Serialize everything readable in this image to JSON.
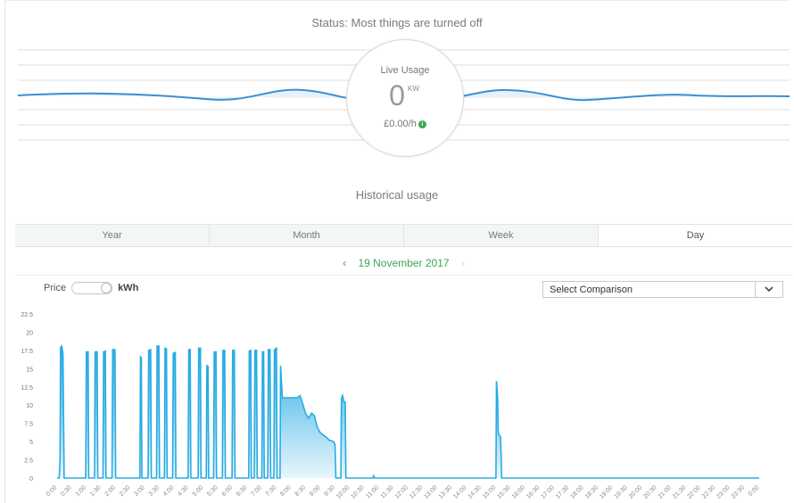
{
  "status": {
    "text": "Status: Most things are turned off"
  },
  "live": {
    "label": "Live Usage",
    "value": "0",
    "unit": "KW",
    "price": "£0.00/h",
    "info_icon": "info-icon"
  },
  "historical": {
    "title": "Historical usage"
  },
  "tabs": [
    {
      "label": "Year",
      "active": false
    },
    {
      "label": "Month",
      "active": false
    },
    {
      "label": "Week",
      "active": false
    },
    {
      "label": "Day",
      "active": true
    }
  ],
  "date_nav": {
    "date": "19 November 2017",
    "prev_icon": "chevron-left-icon",
    "next_icon": "chevron-right-icon"
  },
  "toggle": {
    "left_label": "Price",
    "right_label": "kWh",
    "selected": "kWh"
  },
  "comparison": {
    "selected": "Select Comparison",
    "icon": "chevron-down-icon"
  },
  "colors": {
    "accent": "#3aa757",
    "series": "#29abe2",
    "wave": "#3a8fd4"
  },
  "chart_data": {
    "type": "area",
    "y_ticks": [
      "0",
      "2.5",
      "5",
      "7.5",
      "10",
      "12.5",
      "15",
      "17.5",
      "20",
      "22.5"
    ],
    "ylim": [
      0,
      22.5
    ],
    "x_ticks": [
      "0:00",
      "0:30",
      "1:00",
      "1:30",
      "2:00",
      "2:30",
      "3:00",
      "3:30",
      "4:00",
      "4:30",
      "5:00",
      "5:30",
      "6:00",
      "6:30",
      "7:00",
      "7:30",
      "8:00",
      "8:30",
      "9:00",
      "9:30",
      "10:00",
      "10:30",
      "11:00",
      "11:30",
      "12:00",
      "12:30",
      "13:00",
      "13:30",
      "14:00",
      "14:30",
      "15:00",
      "15:30",
      "16:00",
      "16:30",
      "17:00",
      "17:30",
      "18:00",
      "18:30",
      "19:00",
      "19:30",
      "20:00",
      "20:30",
      "21:00",
      "21:30",
      "22:00",
      "22:30",
      "23:00",
      "23:30",
      "0:00"
    ],
    "xlim": [
      0,
      24
    ],
    "series": [
      {
        "points": [
          [
            0,
            0
          ],
          [
            0.07,
            0
          ],
          [
            0.1,
            2.5
          ],
          [
            0.12,
            17.9
          ],
          [
            0.16,
            18.1
          ],
          [
            0.2,
            17
          ],
          [
            0.24,
            0
          ],
          [
            0.98,
            0
          ],
          [
            1.0,
            17.3
          ],
          [
            1.06,
            17.3
          ],
          [
            1.08,
            0
          ],
          [
            1.28,
            0
          ],
          [
            1.3,
            17.3
          ],
          [
            1.37,
            17.3
          ],
          [
            1.39,
            0
          ],
          [
            1.57,
            0
          ],
          [
            1.59,
            17.3
          ],
          [
            1.65,
            17.4
          ],
          [
            1.67,
            0
          ],
          [
            1.88,
            0
          ],
          [
            1.9,
            17.6
          ],
          [
            1.98,
            17.6
          ],
          [
            2.0,
            0
          ],
          [
            2.83,
            0
          ],
          [
            2.85,
            16.6
          ],
          [
            2.88,
            16.5
          ],
          [
            2.9,
            0
          ],
          [
            3.11,
            0
          ],
          [
            3.13,
            17.5
          ],
          [
            3.2,
            17.6
          ],
          [
            3.22,
            0
          ],
          [
            3.4,
            0
          ],
          [
            3.42,
            18.1
          ],
          [
            3.48,
            18.1
          ],
          [
            3.5,
            0
          ],
          [
            3.67,
            0
          ],
          [
            3.69,
            17.8
          ],
          [
            3.74,
            17.7
          ],
          [
            3.76,
            0
          ],
          [
            3.95,
            0
          ],
          [
            3.97,
            17.1
          ],
          [
            4.04,
            17.2
          ],
          [
            4.06,
            0
          ],
          [
            4.48,
            0
          ],
          [
            4.5,
            17.6
          ],
          [
            4.55,
            17.6
          ],
          [
            4.57,
            0
          ],
          [
            4.82,
            0
          ],
          [
            4.84,
            17.8
          ],
          [
            4.9,
            17.8
          ],
          [
            4.92,
            0
          ],
          [
            5.1,
            0
          ],
          [
            5.12,
            15.4
          ],
          [
            5.16,
            15.3
          ],
          [
            5.18,
            0
          ],
          [
            5.35,
            0
          ],
          [
            5.37,
            17.3
          ],
          [
            5.43,
            17.3
          ],
          [
            5.45,
            0
          ],
          [
            5.65,
            0
          ],
          [
            5.67,
            17.5
          ],
          [
            5.73,
            17.5
          ],
          [
            5.75,
            0
          ],
          [
            5.98,
            0
          ],
          [
            6.0,
            17.5
          ],
          [
            6.06,
            17.5
          ],
          [
            6.08,
            0
          ],
          [
            6.55,
            0
          ],
          [
            6.57,
            17.4
          ],
          [
            6.62,
            17.5
          ],
          [
            6.64,
            0
          ],
          [
            6.74,
            0
          ],
          [
            6.76,
            17.5
          ],
          [
            6.82,
            17.5
          ],
          [
            6.84,
            0
          ],
          [
            7.0,
            0
          ],
          [
            7.02,
            17.3
          ],
          [
            7.06,
            17.3
          ],
          [
            7.08,
            0
          ],
          [
            7.2,
            0
          ],
          [
            7.22,
            17.6
          ],
          [
            7.28,
            17.6
          ],
          [
            7.3,
            0
          ],
          [
            7.41,
            0
          ],
          [
            7.43,
            17.6
          ],
          [
            7.5,
            17.8
          ],
          [
            7.52,
            0
          ],
          [
            7.62,
            0
          ],
          [
            7.64,
            15.4
          ],
          [
            7.7,
            11
          ],
          [
            8.2,
            11
          ],
          [
            8.3,
            11.3
          ],
          [
            8.35,
            10.8
          ],
          [
            8.5,
            8.8
          ],
          [
            8.6,
            8.2
          ],
          [
            8.7,
            8.9
          ],
          [
            8.8,
            8.5
          ],
          [
            8.85,
            7.6
          ],
          [
            8.9,
            6.9
          ],
          [
            9.0,
            6.2
          ],
          [
            9.1,
            5.9
          ],
          [
            9.2,
            5.6
          ],
          [
            9.3,
            5.2
          ],
          [
            9.45,
            5.0
          ],
          [
            9.5,
            4.6
          ],
          [
            9.53,
            0
          ],
          [
            9.7,
            0
          ],
          [
            9.72,
            10.9
          ],
          [
            9.76,
            11.3
          ],
          [
            9.8,
            10.5
          ],
          [
            9.85,
            10.4
          ],
          [
            9.87,
            0
          ],
          [
            10.8,
            0
          ],
          [
            10.82,
            0.3
          ],
          [
            10.86,
            0
          ],
          [
            15.0,
            0
          ],
          [
            15.02,
            13.3
          ],
          [
            15.06,
            11
          ],
          [
            15.08,
            6.3
          ],
          [
            15.1,
            6
          ],
          [
            15.16,
            5.6
          ],
          [
            15.2,
            0
          ],
          [
            24,
            0
          ]
        ]
      }
    ]
  }
}
